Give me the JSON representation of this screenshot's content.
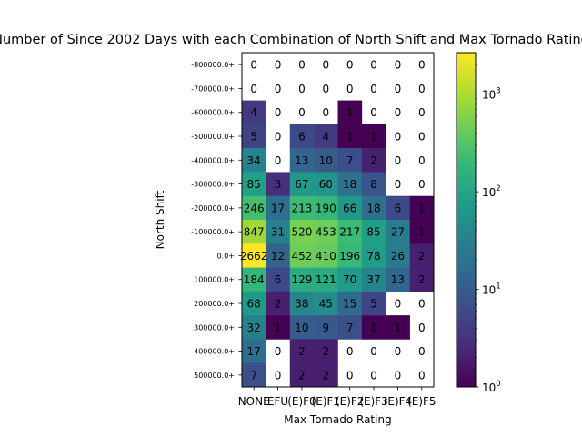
{
  "chart_data": {
    "type": "heatmap",
    "title": "Number of Since 2002 Days with each Combination of North Shift and Max Tornado Rating",
    "xlabel": "Max Tornado Rating",
    "ylabel": "North Shift",
    "x_categories": [
      "NONE",
      "EFU",
      "(E)F0",
      "(E)F1",
      "(E)F2",
      "(E)F3",
      "(E)F4",
      "(E)F5"
    ],
    "y_categories": [
      "-800000.0+",
      "-700000.0+",
      "-600000.0+",
      "-500000.0+",
      "-400000.0+",
      "-300000.0+",
      "-200000.0+",
      "-100000.0+",
      "0.0+",
      "100000.0+",
      "200000.0+",
      "300000.0+",
      "400000.0+",
      "500000.0+"
    ],
    "values": [
      [
        0,
        0,
        0,
        0,
        0,
        0,
        0,
        0
      ],
      [
        0,
        0,
        0,
        0,
        0,
        0,
        0,
        0
      ],
      [
        4,
        0,
        0,
        0,
        1,
        0,
        0,
        0
      ],
      [
        5,
        0,
        6,
        4,
        1,
        1,
        0,
        0
      ],
      [
        34,
        0,
        13,
        10,
        7,
        2,
        0,
        0
      ],
      [
        85,
        3,
        67,
        60,
        18,
        8,
        0,
        0
      ],
      [
        246,
        17,
        213,
        190,
        66,
        18,
        6,
        1
      ],
      [
        847,
        31,
        520,
        453,
        217,
        85,
        27,
        1
      ],
      [
        2662,
        12,
        452,
        410,
        196,
        78,
        26,
        2
      ],
      [
        184,
        6,
        129,
        121,
        70,
        37,
        13,
        2
      ],
      [
        68,
        2,
        38,
        45,
        15,
        5,
        0,
        0
      ],
      [
        32,
        1,
        10,
        9,
        7,
        1,
        1,
        0
      ],
      [
        17,
        0,
        2,
        2,
        0,
        0,
        0,
        0
      ],
      [
        7,
        0,
        2,
        2,
        0,
        0,
        0,
        0
      ]
    ],
    "colorscale": "viridis",
    "color_scale_type": "log",
    "color_range": [
      1,
      2662
    ],
    "colorbar_ticks": [
      {
        "value": 1,
        "base": "10",
        "exp": "0"
      },
      {
        "value": 10,
        "base": "10",
        "exp": "1"
      },
      {
        "value": 100,
        "base": "10",
        "exp": "2"
      },
      {
        "value": 1000,
        "base": "10",
        "exp": "3"
      }
    ],
    "zero_cells": "white",
    "grid": false,
    "legend": "colorbar-right"
  }
}
